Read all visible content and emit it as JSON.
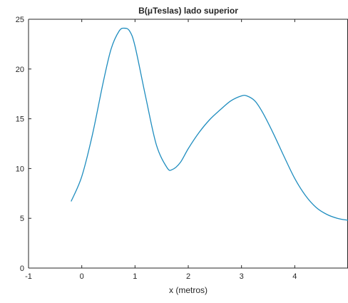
{
  "chart_data": {
    "type": "line",
    "title": "B(μTeslas) lado superior",
    "xlabel": "x (metros)",
    "ylabel": "",
    "xlim": [
      -1,
      5
    ],
    "ylim": [
      0,
      25
    ],
    "xticks": [
      -1,
      0,
      1,
      2,
      3,
      4
    ],
    "yticks": [
      0,
      5,
      10,
      15,
      20,
      25
    ],
    "grid": false,
    "series": [
      {
        "color": "#1f8dbf",
        "x": [
          -0.2,
          0.0,
          0.2,
          0.4,
          0.55,
          0.7,
          0.8,
          0.9,
          1.0,
          1.2,
          1.4,
          1.6,
          1.7,
          1.85,
          2.0,
          2.2,
          2.4,
          2.6,
          2.8,
          3.0,
          3.1,
          3.25,
          3.4,
          3.6,
          3.8,
          4.0,
          4.2,
          4.4,
          4.6,
          4.8,
          5.0
        ],
        "y": [
          6.7,
          9.2,
          13.4,
          18.6,
          22.0,
          23.8,
          24.1,
          23.8,
          22.3,
          17.2,
          12.4,
          10.1,
          9.9,
          10.6,
          12.0,
          13.6,
          14.9,
          15.9,
          16.8,
          17.3,
          17.3,
          16.8,
          15.6,
          13.5,
          11.2,
          9.0,
          7.3,
          6.1,
          5.4,
          5.0,
          4.8
        ]
      }
    ]
  }
}
